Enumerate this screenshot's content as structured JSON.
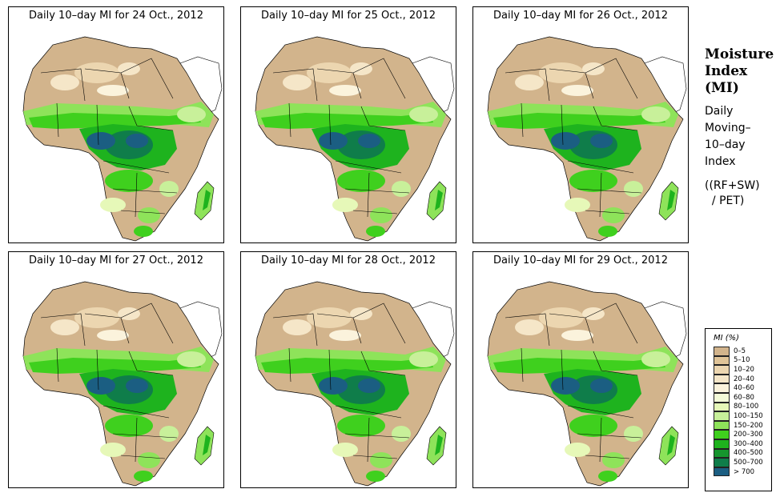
{
  "panels": [
    {
      "title": "Daily 10–day MI for  24 Oct., 2012"
    },
    {
      "title": "Daily 10–day MI for  25 Oct., 2012"
    },
    {
      "title": "Daily 10–day MI for  26 Oct., 2012"
    },
    {
      "title": "Daily 10–day MI for  27 Oct., 2012"
    },
    {
      "title": "Daily 10–day MI for  28 Oct., 2012"
    },
    {
      "title": "Daily 10–day MI for  29 Oct., 2012"
    }
  ],
  "info": {
    "heading": [
      "Moisture",
      "Index",
      "(MI)"
    ],
    "description": [
      "Daily",
      "Moving–",
      "10–day",
      "Index"
    ],
    "formula": [
      "((RF+SW)",
      "  / PET)"
    ]
  },
  "legend": {
    "title": "MI (%)",
    "classes": [
      {
        "label": "0–5",
        "color": "#d2b48c"
      },
      {
        "label": "5–10",
        "color": "#e0c498"
      },
      {
        "label": "10–20",
        "color": "#ecd6b0"
      },
      {
        "label": "20–40",
        "color": "#f5e6c8"
      },
      {
        "label": "40–60",
        "color": "#fbf3dc"
      },
      {
        "label": "60–80",
        "color": "#f4fbd8"
      },
      {
        "label": "80–100",
        "color": "#e6f8b8"
      },
      {
        "label": "100–150",
        "color": "#c8f09a"
      },
      {
        "label": "150–200",
        "color": "#8ee35a"
      },
      {
        "label": "200–300",
        "color": "#3fd01e"
      },
      {
        "label": "300–400",
        "color": "#1eb31e"
      },
      {
        "label": "400–500",
        "color": "#16952e"
      },
      {
        "label": "500–700",
        "color": "#0f7d4a"
      },
      {
        "label": "> 700",
        "color": "#1b5e82"
      }
    ]
  }
}
